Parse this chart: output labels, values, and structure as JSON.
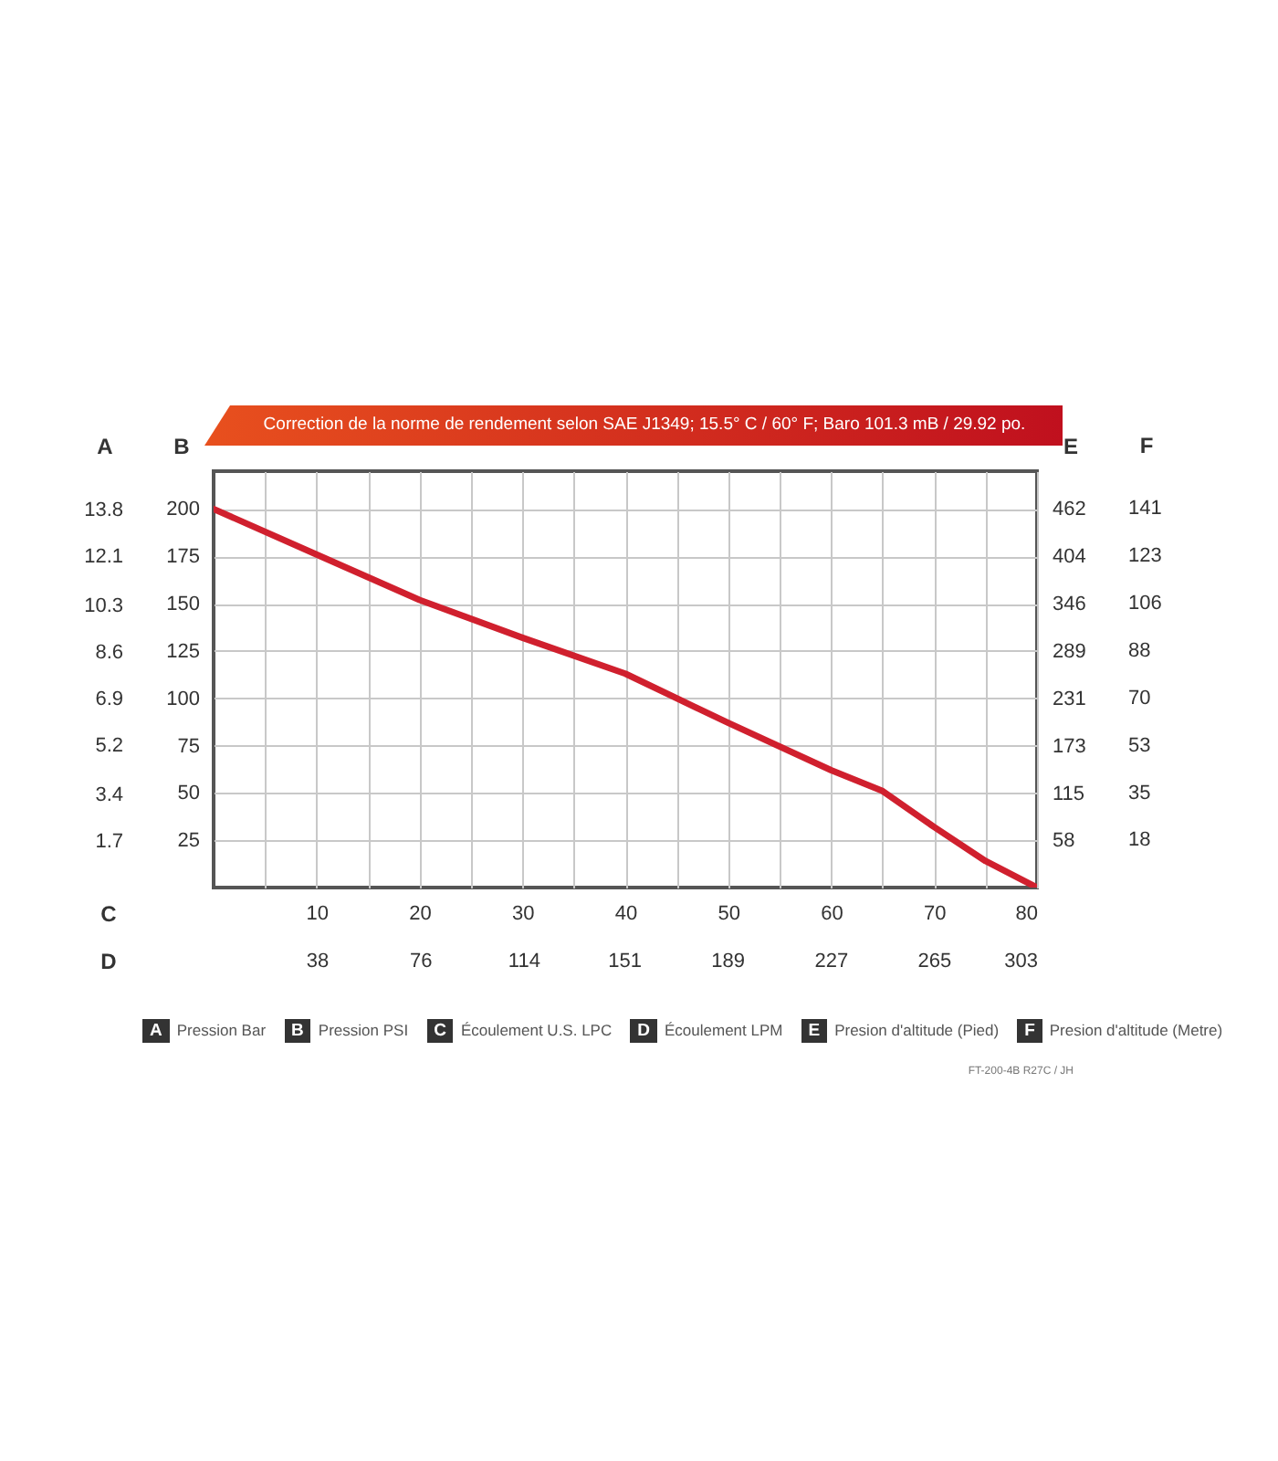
{
  "chart_data": {
    "type": "line",
    "title": "Correction de la norme de rendement selon SAE J1349;  15.5° C  / 60° F;  Baro 101.3 mB / 29.92 po.",
    "xlabel": "C",
    "x2label": "D",
    "ylabel": "B",
    "y2label": "A",
    "y3label": "E",
    "x": [
      0,
      10,
      20,
      30,
      40,
      50,
      60,
      65,
      70,
      75,
      80
    ],
    "series": [
      {
        "color": "#d0202e",
        "values": [
          200,
          176,
          152,
          132,
          113,
          87,
          62,
          51,
          32,
          14,
          0
        ]
      }
    ],
    "xlim": [
      0,
      80
    ],
    "xticks": [
      {
        "value": 5,
        "label": null
      },
      10,
      {
        "value": 15,
        "label": null
      },
      20,
      {
        "value": 25,
        "label": null
      },
      30,
      {
        "value": 35,
        "label": null
      },
      40,
      {
        "value": 45,
        "label": null
      },
      50,
      {
        "value": 55,
        "label": null
      },
      60,
      {
        "value": 65,
        "label": null
      },
      70,
      {
        "value": 75,
        "label": null
      },
      80
    ],
    "x2lim": [
      0,
      303
    ],
    "x2ticks": [
      38,
      76,
      114,
      151,
      189,
      227,
      265,
      303
    ],
    "ylim": [
      0,
      220
    ],
    "yticks": [
      25,
      50,
      75,
      100,
      125,
      150,
      175,
      200
    ],
    "y2lim": [
      0,
      15.2
    ],
    "y2ticks": [
      1.7,
      3.4,
      5.2,
      6.9,
      8.6,
      10.3,
      12.1,
      13.8
    ],
    "y3lim": [
      0,
      508
    ],
    "y3ticks": [
      58,
      115,
      173,
      231,
      289,
      346,
      404,
      462
    ],
    "grid": true,
    "line_style": "solid",
    "annotations": [
      "Pression Bar",
      "Pression PSI",
      "Écoulement U.S. LPC",
      "Écoulement LPM",
      "Presion d'altitude (Pied)",
      "Presion d'altitude (Metre)",
      "FT-200-4B R27C / JH",
      "F",
      "18",
      "35",
      "53",
      "70",
      "88",
      "106",
      "123",
      "141"
    ]
  }
}
